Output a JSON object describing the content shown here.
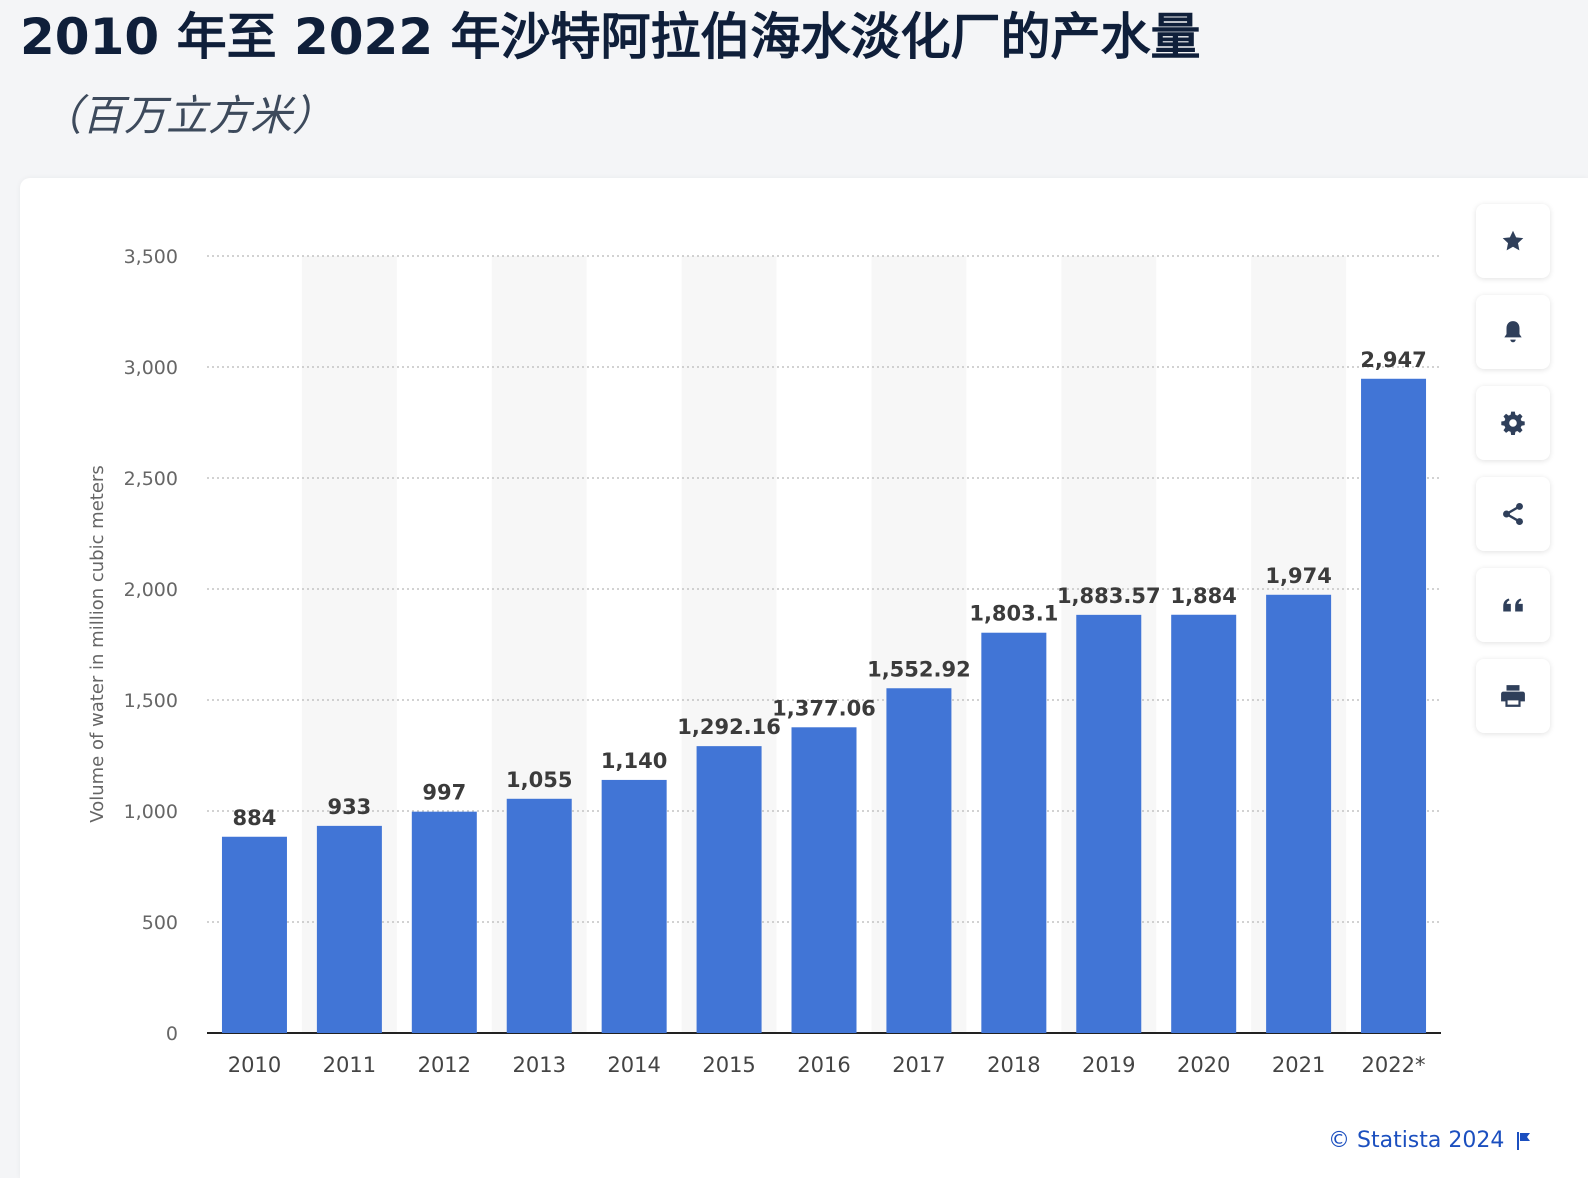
{
  "page": {
    "title": "2010 年至 2022 年沙特阿拉伯海水淡化厂的产水量",
    "subtitle": "（百万立方米）",
    "credit": "© Statista 2024"
  },
  "toolbar": [
    {
      "name": "star-icon"
    },
    {
      "name": "bell-icon"
    },
    {
      "name": "gear-icon"
    },
    {
      "name": "share-icon"
    },
    {
      "name": "quote-icon"
    },
    {
      "name": "print-icon"
    }
  ],
  "colors": {
    "bar": "#4175d6",
    "title": "#0f1f3a",
    "credit": "#1b4fbf",
    "band": "#f7f7f7"
  },
  "chart_data": {
    "type": "bar",
    "title": "2010 年至 2022 年沙特阿拉伯海水淡化厂的产水量",
    "xlabel": "",
    "ylabel": "Volume of water in million cubic meters",
    "ylim": [
      0,
      3500
    ],
    "yticks": [
      0,
      500,
      1000,
      1500,
      2000,
      2500,
      3000,
      3500
    ],
    "ytick_labels": [
      "0",
      "500",
      "1,000",
      "1,500",
      "2,000",
      "2,500",
      "3,000",
      "3,500"
    ],
    "grid": true,
    "categories": [
      "2010",
      "2011",
      "2012",
      "2013",
      "2014",
      "2015",
      "2016",
      "2017",
      "2018",
      "2019",
      "2020",
      "2021",
      "2022*"
    ],
    "values": [
      884,
      933,
      997,
      1055,
      1140,
      1292.16,
      1377.06,
      1552.92,
      1803.1,
      1883.57,
      1884,
      1974,
      2947
    ],
    "value_labels": [
      "884",
      "933",
      "997",
      "1,055",
      "1,140",
      "1,292.16",
      "1,377.06",
      "1,552.92",
      "1,803.1",
      "1,883.57",
      "1,884",
      "1,974",
      "2,947"
    ]
  }
}
